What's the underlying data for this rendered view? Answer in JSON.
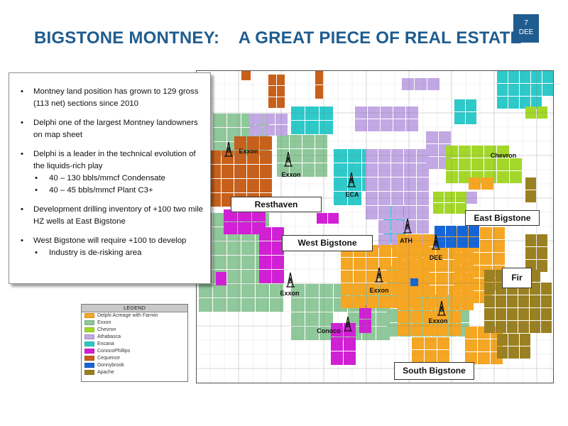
{
  "slide": {
    "title": "BIGSTONE MONTNEY:    A GREAT PIECE OF REAL ESTATE",
    "page_number": "7",
    "ticker": "DEE"
  },
  "bullets": {
    "b1": "Montney land position has grown to 129 gross (113 net) sections since 2010",
    "b2": "Delphi one of the largest Montney landowners on map sheet",
    "b3": "Delphi is a leader in the technical evolution of the liquids-rich play",
    "b3_sub1": "40 – 130 bbls/mmcf  Condensate",
    "b3_sub2": "40 – 45 bbls/mmcf  Plant C3+",
    "b4": "Development drilling inventory of +100 two mile HZ wells at East Bigstone",
    "b5": "West Bigstone will require +100 to develop",
    "b5_sub1": "Industry is de-risking area"
  },
  "areas": {
    "resthaven": "Resthaven",
    "west_bigstone": "West Bigstone",
    "east_bigstone": "East Bigstone",
    "fir": "Fir",
    "south_bigstone": "South Bigstone"
  },
  "well_labels": {
    "exxon_1": "Exxon",
    "exxon_2": "Exxon",
    "exxon_3": "Exxon",
    "exxon_4": "Exxon",
    "exxon_5": "Exxon",
    "eca": "ECA",
    "ath": "ATH",
    "dee": "DEE",
    "conoco": "Conoco",
    "chevron": "Chevron"
  },
  "legend": {
    "title": "LEGEND",
    "items": [
      {
        "label": "Delphi Acreage with Farmin",
        "color": "#f5a623"
      },
      {
        "label": "Exxon",
        "color": "#8fc89a"
      },
      {
        "label": "Chevron",
        "color": "#a3d82a"
      },
      {
        "label": "Athabasca",
        "color": "#c2a8e4"
      },
      {
        "label": "Encana",
        "color": "#2ec9c9"
      },
      {
        "label": "ConocoPhillips",
        "color": "#d21fd6"
      },
      {
        "label": "Cequence",
        "color": "#c8601a"
      },
      {
        "label": "Donnybrook",
        "color": "#1565d8"
      },
      {
        "label": "Apache",
        "color": "#9a8020"
      }
    ]
  },
  "colors": {
    "title_blue": "#1f5c8f",
    "delphi": "#f5a623",
    "exxon": "#8fc89a",
    "chevron": "#a3d82a",
    "athabasca": "#c2a8e4",
    "encana": "#2ec9c9",
    "conocophillips": "#d21fd6",
    "cequence": "#c8601a",
    "donnybrook": "#1565d8",
    "apache": "#9a8020"
  }
}
